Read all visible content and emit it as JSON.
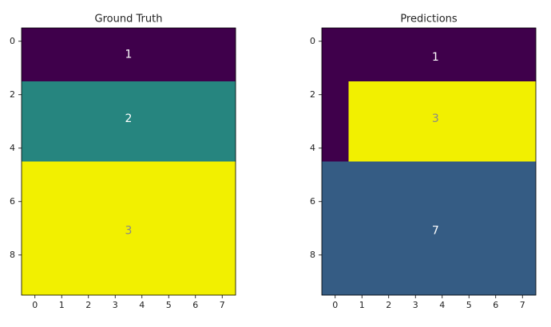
{
  "chart_data": [
    {
      "type": "image",
      "title": "Ground Truth",
      "xlim": [
        -0.5,
        7.5
      ],
      "ylim": [
        9.5,
        -0.5
      ],
      "xticks": [
        0,
        1,
        2,
        3,
        4,
        5,
        6,
        7
      ],
      "yticks": [
        0,
        2,
        4,
        6,
        8
      ],
      "colormap": [
        {
          "value": 1,
          "color": "#3f004b"
        },
        {
          "value": 2,
          "color": "#26857f"
        },
        {
          "value": 3,
          "color": "#f2f000"
        }
      ],
      "values": [
        [
          1,
          1,
          1,
          1,
          1,
          1,
          1,
          1
        ],
        [
          1,
          1,
          1,
          1,
          1,
          1,
          1,
          1
        ],
        [
          2,
          2,
          2,
          2,
          2,
          2,
          2,
          2
        ],
        [
          2,
          2,
          2,
          2,
          2,
          2,
          2,
          2
        ],
        [
          2,
          2,
          2,
          2,
          2,
          2,
          2,
          2
        ],
        [
          3,
          3,
          3,
          3,
          3,
          3,
          3,
          3
        ],
        [
          3,
          3,
          3,
          3,
          3,
          3,
          3,
          3
        ],
        [
          3,
          3,
          3,
          3,
          3,
          3,
          3,
          3
        ],
        [
          3,
          3,
          3,
          3,
          3,
          3,
          3,
          3
        ],
        [
          3,
          3,
          3,
          3,
          3,
          3,
          3,
          3
        ]
      ],
      "annotations": [
        {
          "value": 1,
          "x": 3.5,
          "y": 0.5,
          "color": "#ffffff"
        },
        {
          "value": 2,
          "x": 3.5,
          "y": 2.9,
          "color": "#ffffff"
        },
        {
          "value": 3,
          "x": 3.5,
          "y": 7.1,
          "color": "#888888"
        }
      ]
    },
    {
      "type": "image",
      "title": "Predictions",
      "xlim": [
        -0.5,
        7.5
      ],
      "ylim": [
        9.5,
        -0.5
      ],
      "xticks": [
        0,
        1,
        2,
        3,
        4,
        5,
        6,
        7
      ],
      "yticks": [
        0,
        2,
        4,
        6,
        8
      ],
      "colormap": [
        {
          "value": 1,
          "color": "#3f004b"
        },
        {
          "value": 3,
          "color": "#f2f000"
        },
        {
          "value": 7,
          "color": "#355c84"
        }
      ],
      "values": [
        [
          1,
          1,
          1,
          1,
          1,
          1,
          1,
          1
        ],
        [
          1,
          1,
          1,
          1,
          1,
          1,
          1,
          1
        ],
        [
          1,
          3,
          3,
          3,
          3,
          3,
          3,
          3
        ],
        [
          1,
          3,
          3,
          3,
          3,
          3,
          3,
          3
        ],
        [
          1,
          3,
          3,
          3,
          3,
          3,
          3,
          3
        ],
        [
          7,
          7,
          7,
          7,
          7,
          7,
          7,
          7
        ],
        [
          7,
          7,
          7,
          7,
          7,
          7,
          7,
          7
        ],
        [
          7,
          7,
          7,
          7,
          7,
          7,
          7,
          7
        ],
        [
          7,
          7,
          7,
          7,
          7,
          7,
          7,
          7
        ],
        [
          7,
          7,
          7,
          7,
          7,
          7,
          7,
          7
        ]
      ],
      "annotations": [
        {
          "value": 1,
          "x": 3.75,
          "y": 0.6,
          "color": "#ffffff"
        },
        {
          "value": 3,
          "x": 3.75,
          "y": 2.9,
          "color": "#888888"
        },
        {
          "value": 7,
          "x": 3.75,
          "y": 7.1,
          "color": "#ffffff"
        }
      ]
    }
  ]
}
